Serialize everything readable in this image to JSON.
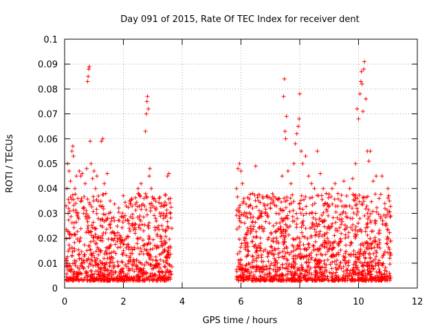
{
  "chart_data": {
    "type": "scatter",
    "title": "Day 091 of 2015, Rate Of TEC Index for receiver dent",
    "xlabel": "GPS time / hours",
    "ylabel": "ROTI / TECUs",
    "xlim": [
      0,
      12
    ],
    "ylim": [
      0,
      0.1
    ],
    "x_ticks": [
      "0",
      "2",
      "4",
      "6",
      "8",
      "10",
      "12"
    ],
    "y_ticks": [
      "0",
      "0.01",
      "0.02",
      "0.03",
      "0.04",
      "0.05",
      "0.06",
      "0.07",
      "0.08",
      "0.09",
      "0.1"
    ],
    "grid": true,
    "marker": "+",
    "color": "#ff0000",
    "series": [
      {
        "name": "ROTI",
        "points": [
          [
            0.05,
            0.033
          ],
          [
            0.08,
            0.04
          ],
          [
            0.1,
            0.05
          ],
          [
            0.15,
            0.047
          ],
          [
            0.2,
            0.043
          ],
          [
            0.25,
            0.055
          ],
          [
            0.28,
            0.057
          ],
          [
            0.3,
            0.053
          ],
          [
            0.35,
            0.04
          ],
          [
            0.4,
            0.045
          ],
          [
            0.45,
            0.036
          ],
          [
            0.5,
            0.047
          ],
          [
            0.55,
            0.045
          ],
          [
            0.6,
            0.046
          ],
          [
            0.65,
            0.03
          ],
          [
            0.7,
            0.042
          ],
          [
            0.75,
            0.048
          ],
          [
            0.78,
            0.083
          ],
          [
            0.8,
            0.085
          ],
          [
            0.82,
            0.088
          ],
          [
            0.84,
            0.089
          ],
          [
            0.87,
            0.059
          ],
          [
            0.9,
            0.05
          ],
          [
            0.95,
            0.044
          ],
          [
            1.0,
            0.047
          ],
          [
            1.05,
            0.04
          ],
          [
            1.1,
            0.045
          ],
          [
            1.15,
            0.037
          ],
          [
            1.2,
            0.033
          ],
          [
            1.25,
            0.059
          ],
          [
            1.3,
            0.06
          ],
          [
            1.35,
            0.042
          ],
          [
            1.4,
            0.038
          ],
          [
            1.45,
            0.046
          ],
          [
            1.5,
            0.03
          ],
          [
            1.55,
            0.035
          ],
          [
            1.6,
            0.028
          ],
          [
            1.7,
            0.022
          ],
          [
            1.8,
            0.02
          ],
          [
            1.9,
            0.018
          ],
          [
            2.0,
            0.015
          ],
          [
            2.1,
            0.02
          ],
          [
            2.2,
            0.024
          ],
          [
            2.3,
            0.025
          ],
          [
            2.4,
            0.022
          ],
          [
            2.5,
            0.04
          ],
          [
            2.6,
            0.042
          ],
          [
            2.7,
            0.036
          ],
          [
            2.75,
            0.063
          ],
          [
            2.78,
            0.07
          ],
          [
            2.8,
            0.075
          ],
          [
            2.82,
            0.077
          ],
          [
            2.85,
            0.072
          ],
          [
            2.88,
            0.045
          ],
          [
            2.9,
            0.048
          ],
          [
            2.95,
            0.04
          ],
          [
            3.0,
            0.033
          ],
          [
            3.1,
            0.028
          ],
          [
            3.2,
            0.025
          ],
          [
            3.3,
            0.03
          ],
          [
            3.4,
            0.033
          ],
          [
            3.5,
            0.045
          ],
          [
            3.55,
            0.046
          ],
          [
            3.6,
            0.036
          ],
          [
            5.85,
            0.04
          ],
          [
            5.9,
            0.048
          ],
          [
            5.95,
            0.05
          ],
          [
            6.0,
            0.047
          ],
          [
            6.05,
            0.042
          ],
          [
            6.1,
            0.036
          ],
          [
            6.2,
            0.03
          ],
          [
            6.3,
            0.033
          ],
          [
            6.4,
            0.038
          ],
          [
            6.5,
            0.049
          ],
          [
            6.6,
            0.035
          ],
          [
            6.7,
            0.03
          ],
          [
            6.8,
            0.033
          ],
          [
            6.9,
            0.037
          ],
          [
            7.0,
            0.032
          ],
          [
            7.1,
            0.035
          ],
          [
            7.2,
            0.03
          ],
          [
            7.3,
            0.036
          ],
          [
            7.4,
            0.045
          ],
          [
            7.45,
            0.077
          ],
          [
            7.48,
            0.084
          ],
          [
            7.5,
            0.063
          ],
          [
            7.52,
            0.06
          ],
          [
            7.55,
            0.069
          ],
          [
            7.6,
            0.047
          ],
          [
            7.7,
            0.042
          ],
          [
            7.8,
            0.05
          ],
          [
            7.85,
            0.058
          ],
          [
            7.9,
            0.062
          ],
          [
            7.95,
            0.065
          ],
          [
            7.98,
            0.068
          ],
          [
            8.0,
            0.078
          ],
          [
            8.05,
            0.055
          ],
          [
            8.1,
            0.05
          ],
          [
            8.2,
            0.053
          ],
          [
            8.3,
            0.045
          ],
          [
            8.4,
            0.042
          ],
          [
            8.5,
            0.04
          ],
          [
            8.6,
            0.055
          ],
          [
            8.7,
            0.046
          ],
          [
            8.8,
            0.04
          ],
          [
            8.9,
            0.038
          ],
          [
            9.0,
            0.033
          ],
          [
            9.1,
            0.04
          ],
          [
            9.2,
            0.042
          ],
          [
            9.3,
            0.038
          ],
          [
            9.4,
            0.035
          ],
          [
            9.5,
            0.043
          ],
          [
            9.6,
            0.037
          ],
          [
            9.7,
            0.04
          ],
          [
            9.8,
            0.044
          ],
          [
            9.9,
            0.05
          ],
          [
            9.95,
            0.072
          ],
          [
            10.0,
            0.068
          ],
          [
            10.05,
            0.078
          ],
          [
            10.08,
            0.083
          ],
          [
            10.1,
            0.087
          ],
          [
            10.12,
            0.082
          ],
          [
            10.15,
            0.071
          ],
          [
            10.18,
            0.088
          ],
          [
            10.2,
            0.091
          ],
          [
            10.25,
            0.076
          ],
          [
            10.3,
            0.055
          ],
          [
            10.35,
            0.051
          ],
          [
            10.4,
            0.055
          ],
          [
            10.5,
            0.043
          ],
          [
            10.6,
            0.045
          ],
          [
            10.7,
            0.036
          ],
          [
            10.8,
            0.045
          ],
          [
            10.9,
            0.032
          ],
          [
            11.0,
            0.04
          ],
          [
            11.05,
            0.035
          ]
        ]
      }
    ]
  }
}
